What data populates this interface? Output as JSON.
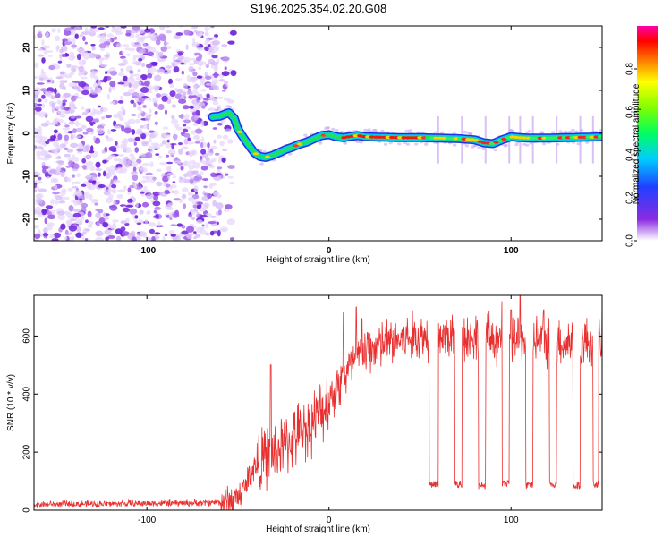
{
  "title": "S196.2025.354.02.20.G08",
  "colors": {
    "snr_line": "#e83030",
    "noise": "#8a2be2",
    "axis": "#000000"
  },
  "colorbar": {
    "label": "Normalized spectral amplitude",
    "ticks": [
      "0.0",
      "0.2",
      "0.4",
      "0.6",
      "0.8"
    ],
    "tick_values": [
      0.0,
      0.2,
      0.4,
      0.6,
      0.8
    ],
    "range": [
      0,
      1
    ]
  },
  "chart_data": [
    {
      "type": "heatmap",
      "name": "spectrogram",
      "xlabel": "Height of straight line (km)",
      "ylabel": "Frequency (Hz)",
      "xlim": [
        -162,
        150
      ],
      "ylim": [
        -25,
        25
      ],
      "x_ticks": [
        "-100",
        "0",
        "100"
      ],
      "x_tick_values": [
        -100,
        0,
        100
      ],
      "y_ticks": [
        "20",
        "10",
        "0",
        "-10",
        "-20"
      ],
      "y_tick_values": [
        20,
        10,
        0,
        -10,
        -20
      ],
      "noise_region_x": [
        -162,
        -60
      ],
      "signal_track": {
        "x": [
          -65,
          -60,
          -57,
          -55,
          -52,
          -50,
          -47,
          -44,
          -41,
          -38,
          -35,
          -32,
          -28,
          -24,
          -20,
          -16,
          -12,
          -8,
          -4,
          0,
          4,
          8,
          12,
          16,
          20,
          30,
          40,
          50,
          60,
          70,
          80,
          85,
          90,
          95,
          100,
          105,
          110,
          120,
          130,
          140,
          150
        ],
        "frequency": [
          3.8,
          4.0,
          4.5,
          4.8,
          3.5,
          1.0,
          -1.0,
          -2.8,
          -4.5,
          -5.4,
          -5.6,
          -5.3,
          -4.6,
          -3.8,
          -3.2,
          -2.5,
          -2.0,
          -1.2,
          -0.5,
          -0.3,
          -0.8,
          -1.0,
          -0.7,
          -0.5,
          -0.8,
          -0.9,
          -1.0,
          -1.0,
          -1.1,
          -1.2,
          -1.5,
          -2.2,
          -2.4,
          -1.5,
          -0.8,
          -1.0,
          -1.1,
          -1.1,
          -1.0,
          -0.9,
          -0.8
        ]
      }
    },
    {
      "type": "line",
      "name": "snr",
      "xlabel": "Height of straight line (km)",
      "ylabel": "SNR (10 * v/v)",
      "xlim": [
        -162,
        150
      ],
      "ylim": [
        0,
        740
      ],
      "x_ticks": [
        "-100",
        "0",
        "100"
      ],
      "x_tick_values": [
        -100,
        0,
        100
      ],
      "y_ticks": [
        "0",
        "200",
        "400",
        "600"
      ],
      "y_tick_values": [
        0,
        200,
        400,
        600
      ],
      "trend": {
        "x": [
          -162,
          -70,
          -55,
          -48,
          -42,
          -35,
          -25,
          -15,
          -5,
          5,
          15,
          25,
          35,
          50,
          70,
          90,
          110,
          130,
          150
        ],
        "y": [
          20,
          25,
          30,
          55,
          140,
          180,
          220,
          270,
          330,
          430,
          520,
          560,
          580,
          600,
          600,
          590,
          590,
          580,
          580
        ]
      },
      "dropouts": {
        "x_start": [
          55,
          69,
          82,
          95,
          108,
          121,
          134,
          145
        ],
        "x_end": [
          60,
          73,
          86,
          99,
          112,
          125,
          138,
          148
        ],
        "y": [
          90,
          90,
          85,
          90,
          85,
          90,
          85,
          90
        ]
      },
      "spikes": {
        "x": [
          -32,
          8,
          15,
          18,
          95,
          100,
          105,
          118
        ],
        "y": [
          500,
          680,
          700,
          660,
          720,
          690,
          740,
          690
        ]
      }
    }
  ]
}
